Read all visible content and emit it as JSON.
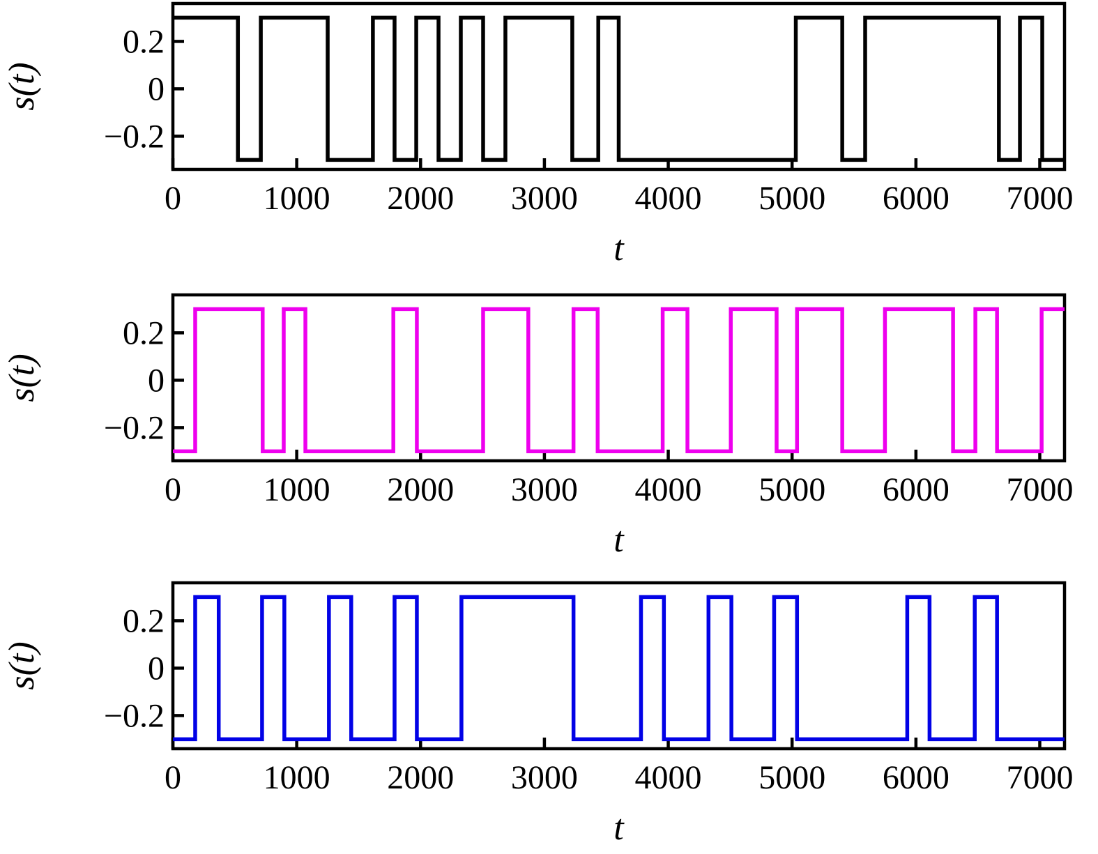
{
  "figure": {
    "description": "Three stacked square-wave telegraph signal plots",
    "background": "#ffffff",
    "axis_color": "#000000"
  },
  "chart_data": [
    {
      "type": "line",
      "subtype": "step-square-wave",
      "title": "",
      "xlabel": "t",
      "ylabel": "s(t)",
      "xlim": [
        0,
        7200
      ],
      "ylim": [
        -0.34,
        0.36
      ],
      "grid": false,
      "legend": null,
      "xticks": [
        0,
        1000,
        2000,
        3000,
        4000,
        5000,
        6000,
        7000
      ],
      "xtick_labels": [
        "0",
        "1000",
        "2000",
        "3000",
        "4000",
        "5000",
        "6000",
        "7000"
      ],
      "ytick_values": [
        0.2,
        0,
        -0.2
      ],
      "ytick_labels": [
        "0.2",
        "0",
        "−0.2"
      ],
      "series": [
        {
          "name": "telegraph-signal-black",
          "color": "#000000",
          "high": 0.3,
          "low": -0.3,
          "initial_level": "high",
          "transition_times": [
            525,
            710,
            1250,
            1615,
            1790,
            1965,
            2145,
            2325,
            2505,
            2685,
            3225,
            3435,
            3600,
            5030,
            5405,
            5590,
            6670,
            6840,
            7020
          ]
        }
      ]
    },
    {
      "type": "line",
      "subtype": "step-square-wave",
      "title": "",
      "xlabel": "t",
      "ylabel": "s(t)",
      "xlim": [
        0,
        7200
      ],
      "ylim": [
        -0.34,
        0.36
      ],
      "grid": false,
      "legend": null,
      "xticks": [
        0,
        1000,
        2000,
        3000,
        4000,
        5000,
        6000,
        7000
      ],
      "xtick_labels": [
        "0",
        "1000",
        "2000",
        "3000",
        "4000",
        "5000",
        "6000",
        "7000"
      ],
      "ytick_values": [
        0.2,
        0,
        -0.2
      ],
      "ytick_labels": [
        "0.2",
        "0",
        "−0.2"
      ],
      "series": [
        {
          "name": "telegraph-signal-magenta",
          "color": "#EE00EE",
          "high": 0.3,
          "low": -0.3,
          "initial_level": "low",
          "transition_times": [
            180,
            725,
            895,
            1070,
            1780,
            1970,
            2505,
            2870,
            3235,
            3430,
            3955,
            4155,
            4505,
            4875,
            5040,
            5405,
            5750,
            6300,
            6480,
            6655,
            7015
          ]
        }
      ]
    },
    {
      "type": "line",
      "subtype": "step-square-wave",
      "title": "",
      "xlabel": "t",
      "ylabel": "s(t)",
      "xlim": [
        0,
        7200
      ],
      "ylim": [
        -0.34,
        0.36
      ],
      "grid": false,
      "legend": null,
      "xticks": [
        0,
        1000,
        2000,
        3000,
        4000,
        5000,
        6000,
        7000
      ],
      "xtick_labels": [
        "0",
        "1000",
        "2000",
        "3000",
        "4000",
        "5000",
        "6000",
        "7000"
      ],
      "ytick_values": [
        0.2,
        0,
        -0.2
      ],
      "ytick_labels": [
        "0.2",
        "0",
        "−0.2"
      ],
      "series": [
        {
          "name": "telegraph-signal-blue",
          "color": "#0202E6",
          "high": 0.3,
          "low": -0.3,
          "initial_level": "low",
          "transition_times": [
            180,
            370,
            720,
            900,
            1260,
            1440,
            1790,
            1970,
            2330,
            3235,
            3780,
            3965,
            4325,
            4510,
            4855,
            5040,
            5930,
            6110,
            6475,
            6655
          ]
        }
      ]
    }
  ]
}
